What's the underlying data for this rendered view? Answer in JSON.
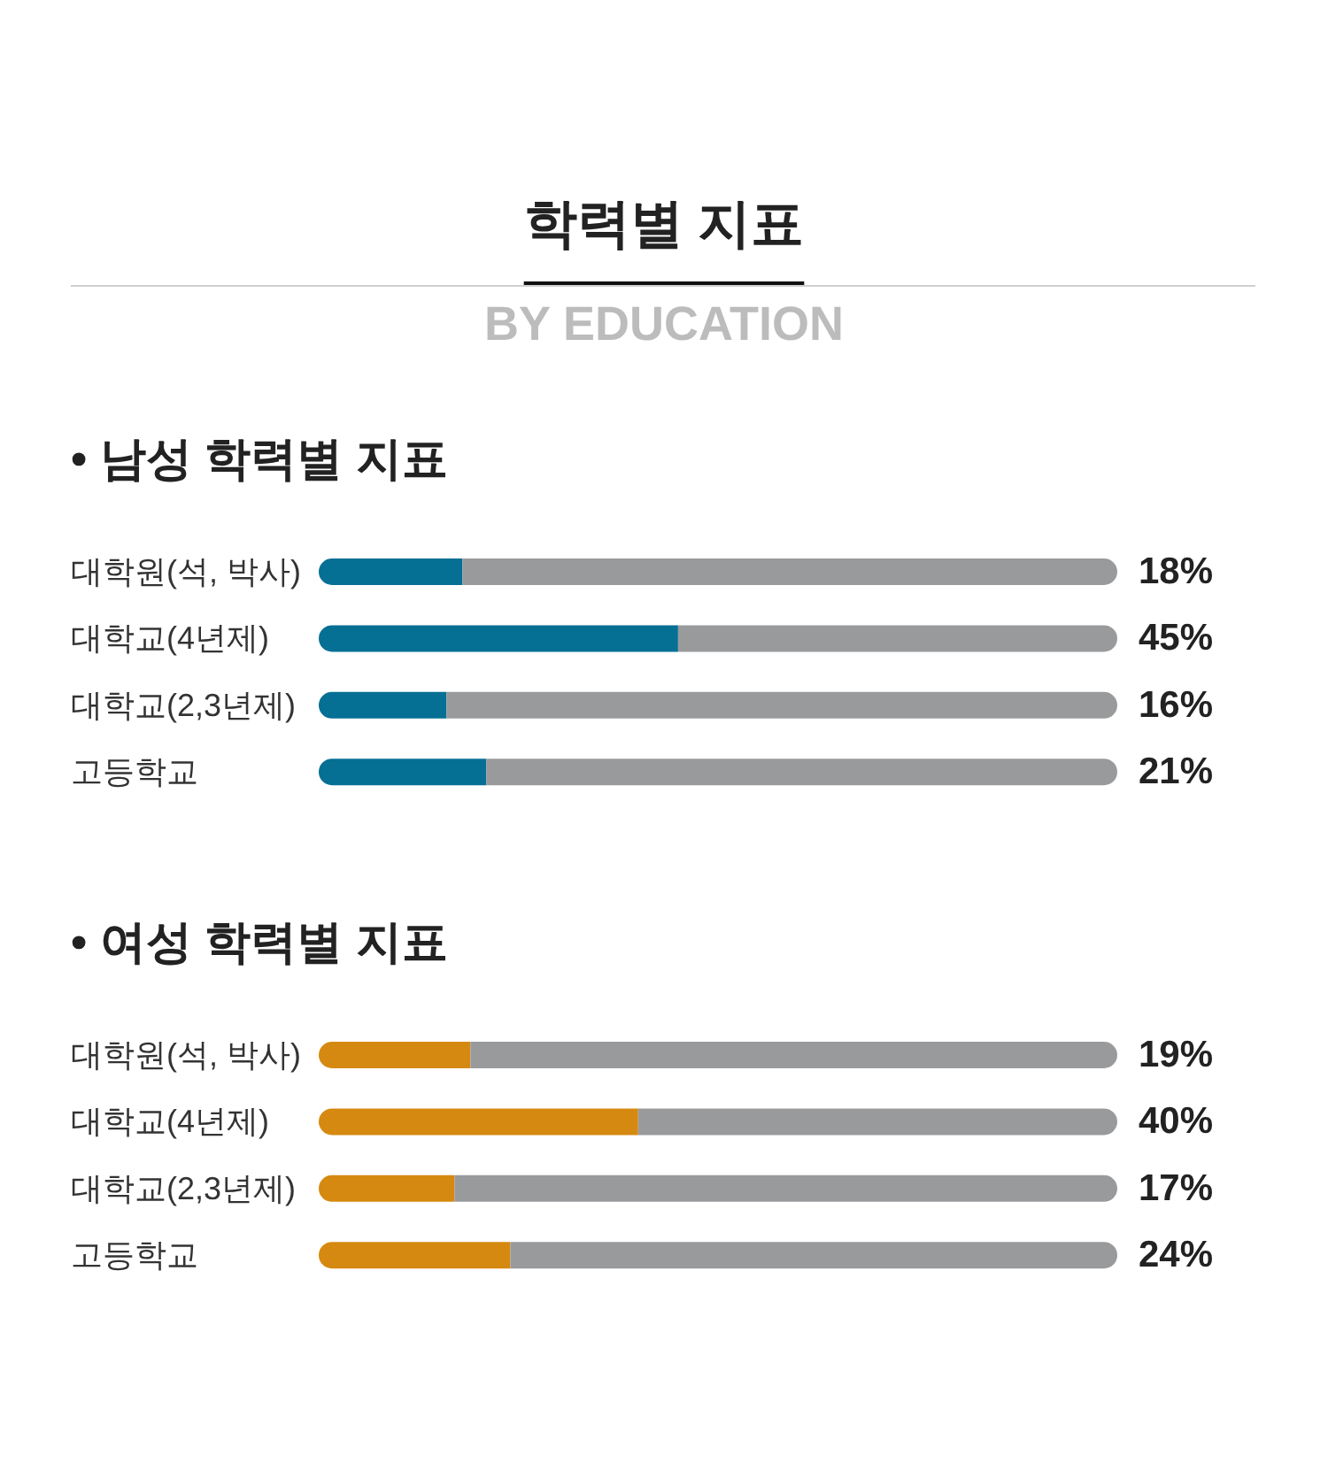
{
  "chart_data": [
    {
      "type": "other",
      "title": "학력별 지표",
      "subtitle": "BY EDUCATION"
    },
    {
      "type": "bar",
      "orientation": "horizontal",
      "stacked": true,
      "title": "• 남성 학력별 지표",
      "categories": [
        "대학원(석, 박사)",
        "대학교(4년제)",
        "대학교(2,3년제)",
        "고등학교"
      ],
      "xlim": [
        0,
        100
      ],
      "tick_labels": "y",
      "series": [
        {
          "color": "#066f94",
          "values": [
            18,
            45,
            16,
            21
          ],
          "value_labels": [
            "18%",
            "45%",
            "16%",
            "21%"
          ]
        },
        {
          "color": "#999a9c",
          "values": [
            82,
            55,
            84,
            79
          ]
        }
      ]
    },
    {
      "type": "bar",
      "orientation": "horizontal",
      "stacked": true,
      "title": "• 여성 학력별 지표",
      "categories": [
        "대학원(석, 박사)",
        "대학교(4년제)",
        "대학교(2,3년제)",
        "고등학교"
      ],
      "xlim": [
        0,
        100
      ],
      "tick_labels": "y",
      "series": [
        {
          "color": "#d68910",
          "values": [
            19,
            40,
            17,
            24
          ],
          "value_labels": [
            "19%",
            "40%",
            "17%",
            "24%"
          ]
        },
        {
          "color": "#999a9c",
          "values": [
            81,
            60,
            83,
            76
          ]
        }
      ]
    }
  ]
}
